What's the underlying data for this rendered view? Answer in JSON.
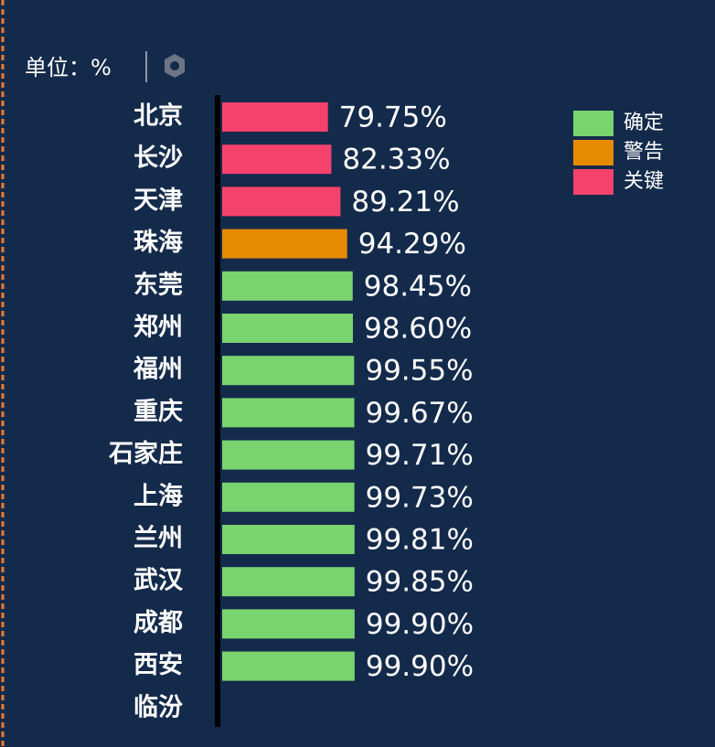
{
  "chart_data": {
    "type": "bar",
    "orientation": "horizontal",
    "unit_label": "单位：%",
    "categories": [
      "北京",
      "长沙",
      "天津",
      "珠海",
      "东莞",
      "郑州",
      "福州",
      "重庆",
      "石家庄",
      "上海",
      "兰州",
      "武汉",
      "成都",
      "西安",
      "临汾"
    ],
    "xlim": [
      0,
      100
    ],
    "series": [
      {
        "name": "确定",
        "color": "#79d46f",
        "values": [
          null,
          null,
          null,
          null,
          98.45,
          98.6,
          99.55,
          99.67,
          99.71,
          99.73,
          99.81,
          99.85,
          99.9,
          99.9,
          null
        ],
        "value_labels": [
          null,
          null,
          null,
          null,
          "98.45%",
          "98.60%",
          "99.55%",
          "99.67%",
          "99.71%",
          "99.73%",
          "99.81%",
          "99.85%",
          "99.90%",
          "99.90%",
          null
        ]
      },
      {
        "name": "警告",
        "color": "#e68a00",
        "values": [
          null,
          null,
          null,
          94.29,
          null,
          null,
          null,
          null,
          null,
          null,
          null,
          null,
          null,
          null,
          null
        ],
        "value_labels": [
          null,
          null,
          null,
          "94.29%",
          null,
          null,
          null,
          null,
          null,
          null,
          null,
          null,
          null,
          null,
          null
        ]
      },
      {
        "name": "关键",
        "color": "#f5426c",
        "values": [
          79.75,
          82.33,
          89.21,
          null,
          null,
          null,
          null,
          null,
          null,
          null,
          null,
          null,
          null,
          null,
          null
        ],
        "value_labels": [
          "79.75%",
          "82.33%",
          "89.21%",
          null,
          null,
          null,
          null,
          null,
          null,
          null,
          null,
          null,
          null,
          null,
          null
        ]
      }
    ],
    "legend": "top-right"
  }
}
